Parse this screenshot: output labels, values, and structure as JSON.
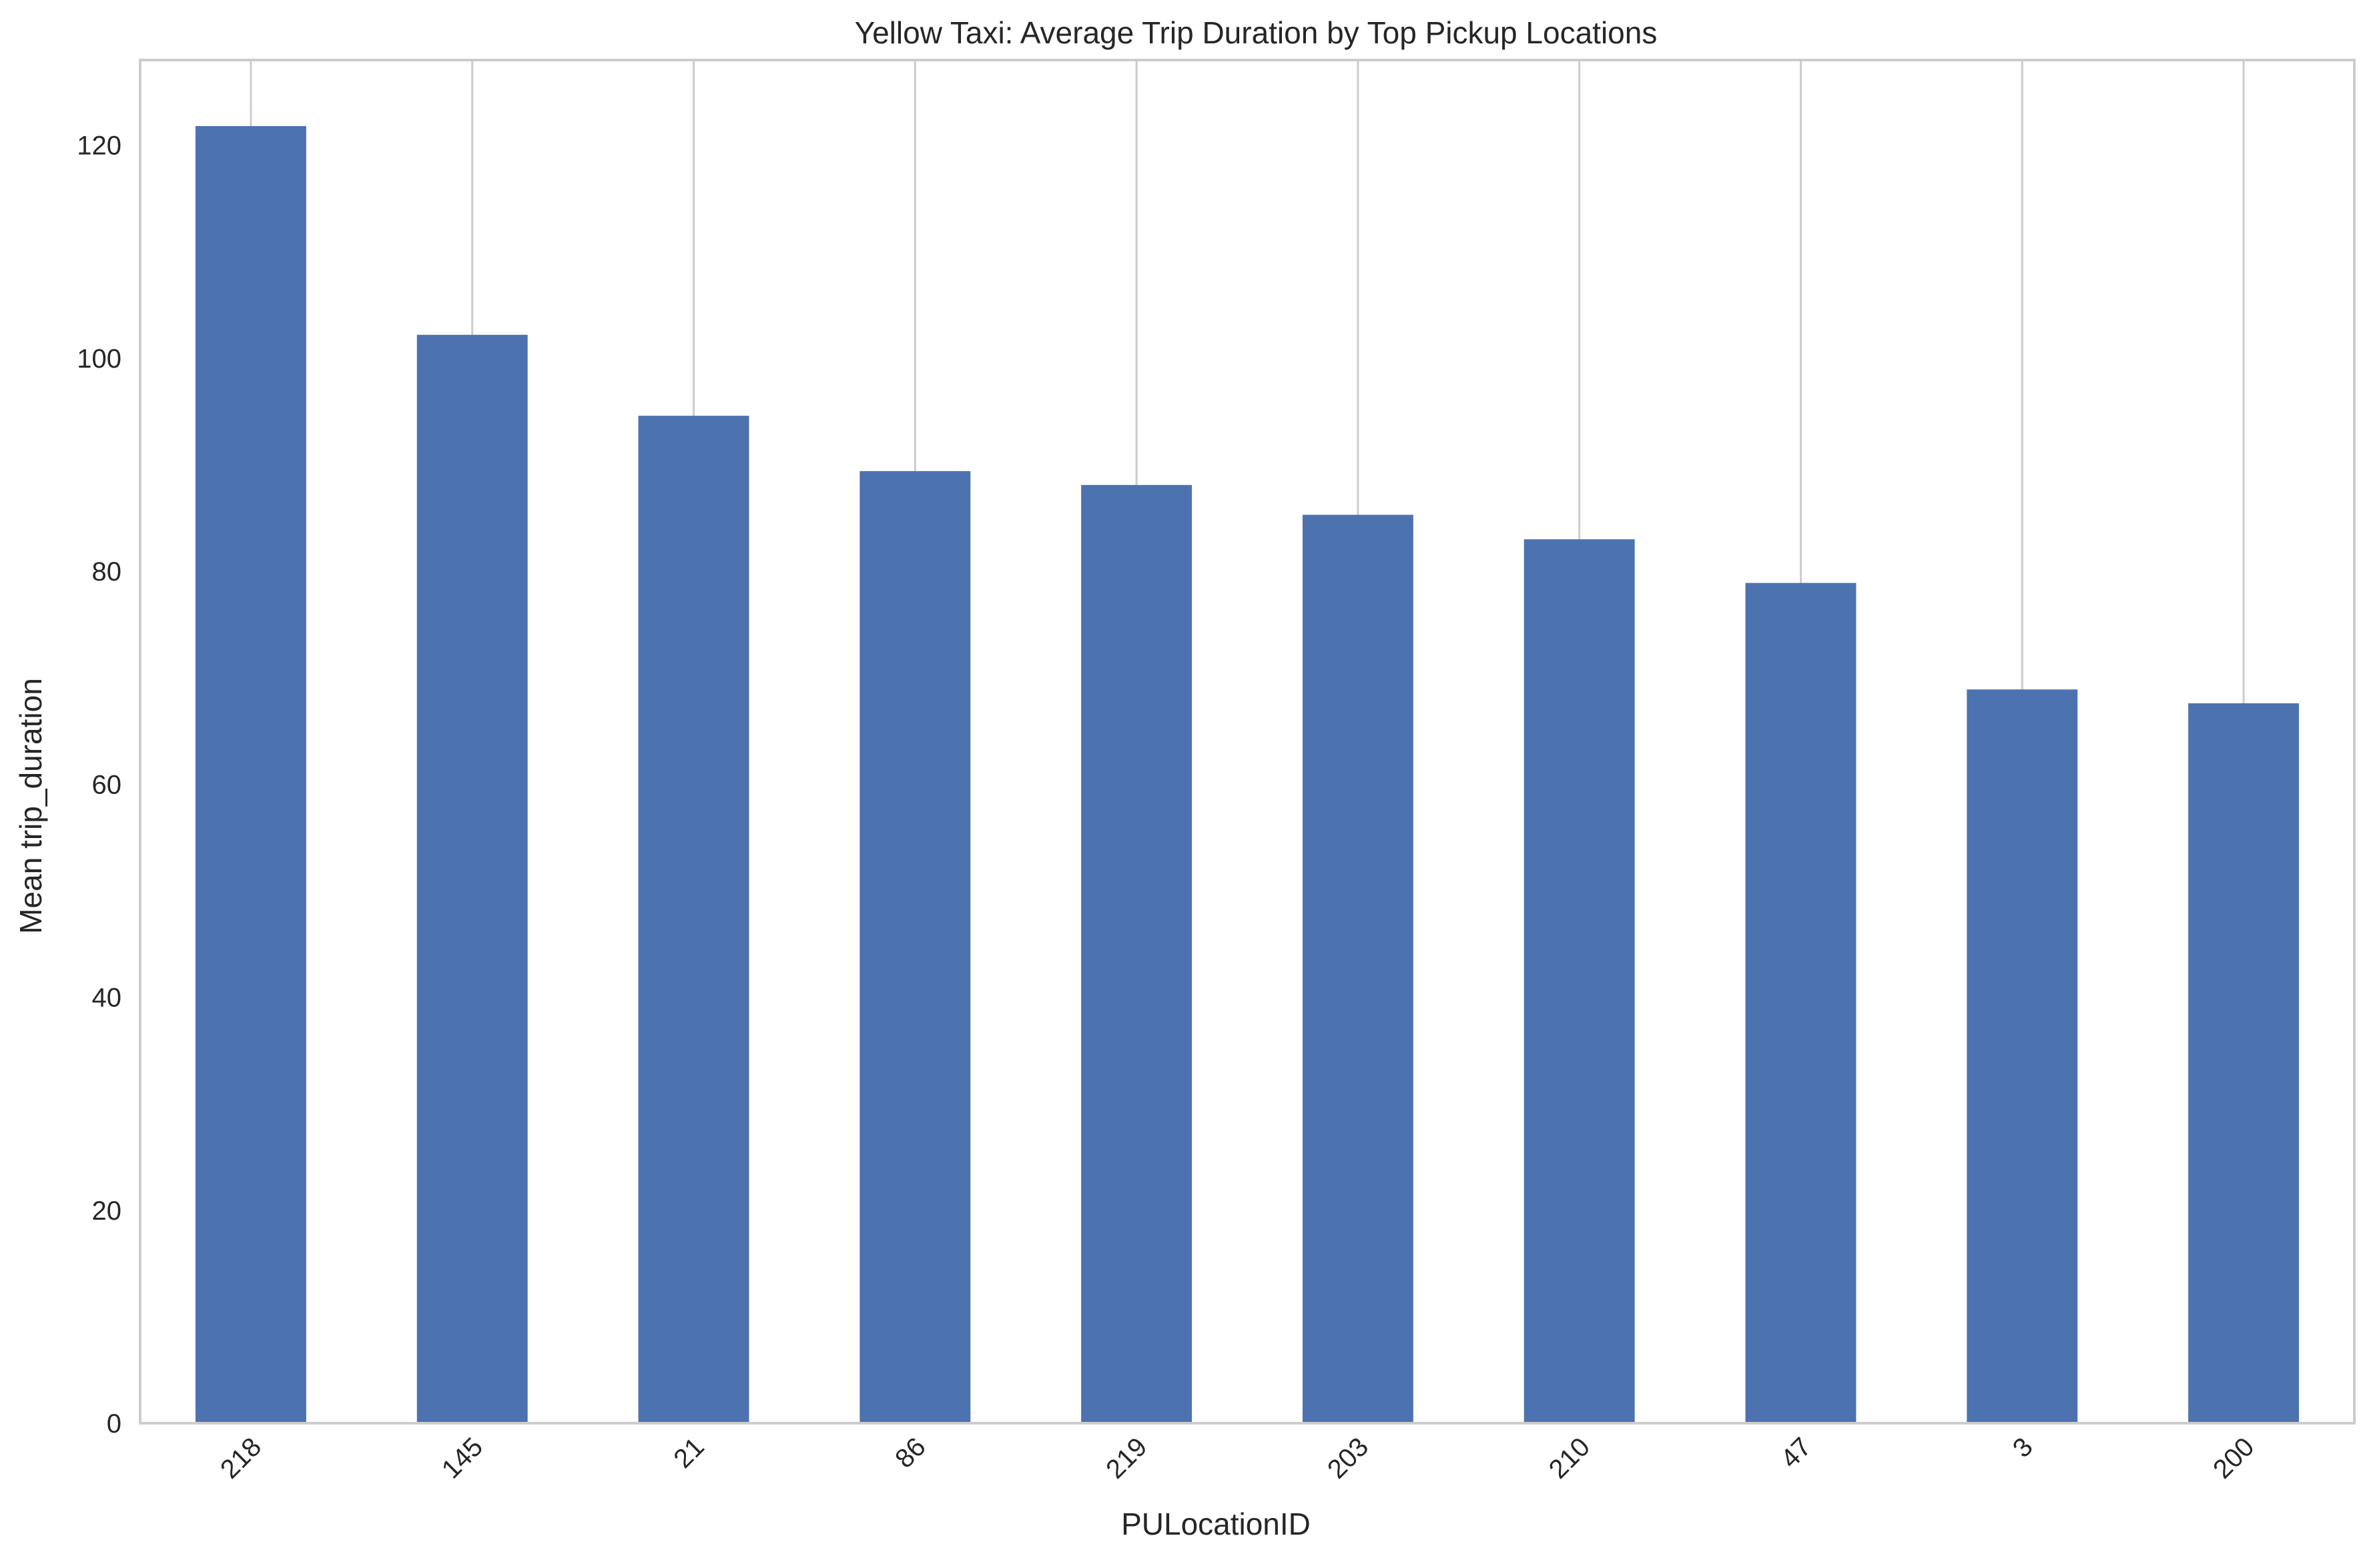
{
  "chart_data": {
    "type": "bar",
    "title": "Yellow Taxi: Average Trip Duration by Top Pickup Locations",
    "xlabel": "PULocationID",
    "ylabel": "Mean trip_duration",
    "categories": [
      "218",
      "145",
      "21",
      "86",
      "219",
      "203",
      "210",
      "47",
      "3",
      "200"
    ],
    "values": [
      121.8,
      102.2,
      94.6,
      89.4,
      88.1,
      85.3,
      83.0,
      78.9,
      68.9,
      67.6
    ],
    "ylim": [
      0,
      128
    ],
    "yticks": [
      0,
      20,
      40,
      60,
      80,
      100,
      120
    ],
    "ytick_labels": [
      "0",
      "20",
      "40",
      "60",
      "80",
      "100",
      "120"
    ],
    "grid": "vertical lines at each category",
    "legend": "none",
    "colors": {
      "bar": "#4c72b0",
      "grid": "#cccccc",
      "spine": "#cccccc",
      "text": "#262626"
    }
  }
}
